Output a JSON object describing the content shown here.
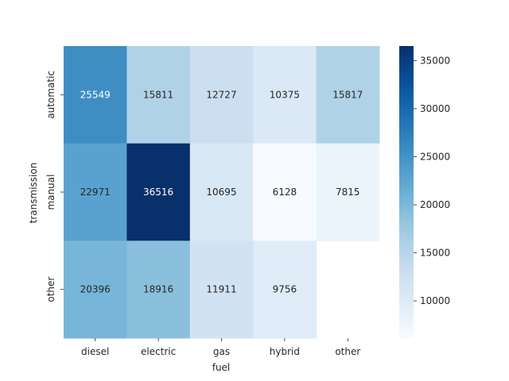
{
  "chart_data": {
    "type": "heatmap",
    "title": "",
    "xlabel": "fuel",
    "ylabel": "transmission",
    "x_categories": [
      "diesel",
      "electric",
      "gas",
      "hybrid",
      "other"
    ],
    "y_categories": [
      "automatic",
      "manual",
      "other"
    ],
    "values": [
      [
        25549,
        15811,
        12727,
        10375,
        15817
      ],
      [
        22971,
        36516,
        10695,
        6128,
        7815
      ],
      [
        20396,
        18916,
        11911,
        9756,
        null
      ]
    ],
    "cell_labels": [
      [
        "25549",
        "15811",
        "12727",
        "10375",
        "15817"
      ],
      [
        "22971",
        "36516",
        "10695",
        "6128",
        "7815"
      ],
      [
        "20396",
        "18916",
        "11911",
        "9756",
        ""
      ]
    ],
    "colorbar": {
      "min": 6128,
      "max": 36516,
      "colormap": "Blues",
      "ticks": [
        10000,
        15000,
        20000,
        25000,
        30000,
        35000
      ],
      "tick_labels": [
        "10000",
        "15000",
        "20000",
        "25000",
        "30000",
        "35000"
      ]
    },
    "colors": {
      "light": "#f7fbff",
      "dark": "#08306b",
      "text_dark": "#262626",
      "text_light": "#ffffff"
    }
  }
}
